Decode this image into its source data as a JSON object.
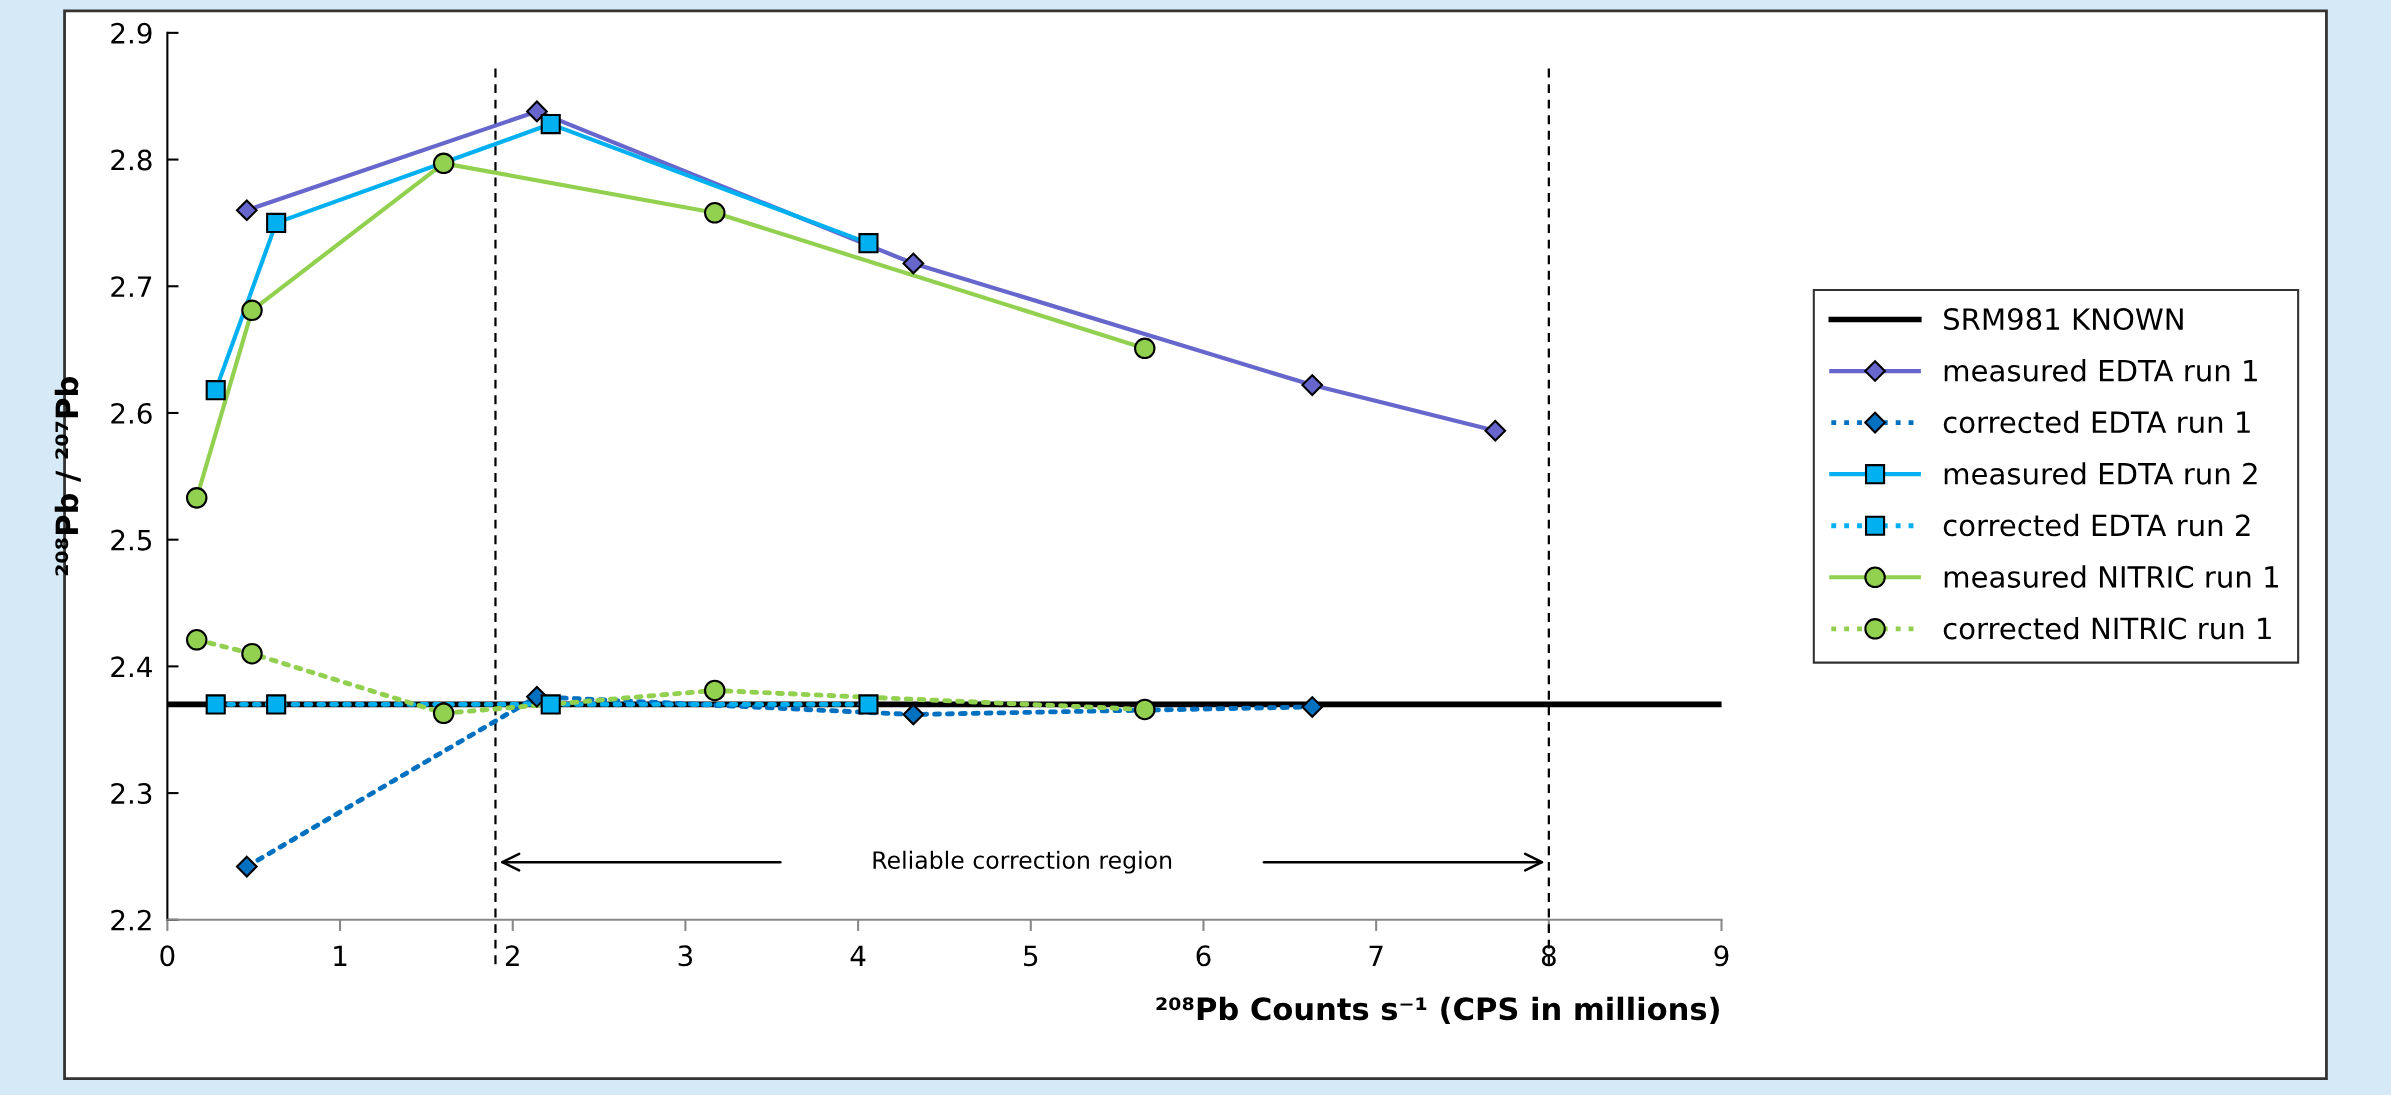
{
  "chart_data": {
    "type": "line",
    "xlabel": "²⁰⁸Pb Counts s⁻¹ (CPS in millions)",
    "ylabel": "²⁰⁸Pb / ²⁰⁷Pb",
    "xlim": [
      0,
      9
    ],
    "xticks": [
      0,
      1,
      2,
      3,
      4,
      5,
      6,
      7,
      8,
      9
    ],
    "ylim": [
      2.2,
      2.9
    ],
    "yticks": [
      2.2,
      2.3,
      2.4,
      2.5,
      2.6,
      2.7,
      2.8,
      2.9
    ],
    "grid": false,
    "legend": "right",
    "ref_lines": [
      {
        "axis": "y",
        "value": 2.37,
        "label": "SRM981 KNOWN",
        "color": "#000000",
        "line_style": "solid"
      },
      {
        "axis": "x",
        "value": 1.9,
        "color": "#000000",
        "line_style": "dashed"
      },
      {
        "axis": "x",
        "value": 8.0,
        "color": "#000000",
        "line_style": "dashed"
      }
    ],
    "annotations": [
      "Reliable correction region"
    ],
    "series": [
      {
        "name": "measured EDTA run 1",
        "color": "#6666cc",
        "marker": "diamond",
        "line_style": "solid",
        "x": [
          0.46,
          2.14,
          4.32,
          6.63,
          7.69
        ],
        "values": [
          2.76,
          2.838,
          2.718,
          2.622,
          2.586
        ]
      },
      {
        "name": "corrected EDTA run 1",
        "color": "#0070c0",
        "marker": "diamond",
        "line_style": "dotted",
        "x": [
          0.46,
          2.14,
          4.32,
          6.63
        ],
        "values": [
          2.242,
          2.376,
          2.362,
          2.368
        ]
      },
      {
        "name": "measured EDTA run 2",
        "color": "#00b0f0",
        "marker": "square",
        "line_style": "solid",
        "x": [
          0.28,
          0.63,
          2.22,
          4.06
        ],
        "values": [
          2.618,
          2.75,
          2.828,
          2.734
        ]
      },
      {
        "name": "corrected EDTA run 2",
        "color": "#00b0f0",
        "marker": "square",
        "line_style": "dotted",
        "x": [
          0.28,
          0.63,
          2.22,
          4.06
        ],
        "values": [
          2.37,
          2.37,
          2.37,
          2.37
        ]
      },
      {
        "name": "measured NITRIC run 1",
        "color": "#92d050",
        "marker": "circle",
        "line_style": "solid",
        "x": [
          0.17,
          0.49,
          1.6,
          3.17,
          5.66
        ],
        "values": [
          2.533,
          2.681,
          2.797,
          2.758,
          2.651
        ]
      },
      {
        "name": "corrected NITRIC run 1",
        "color": "#92d050",
        "marker": "circle",
        "line_style": "dotted",
        "x": [
          0.17,
          0.49,
          1.6,
          3.17,
          5.66
        ],
        "values": [
          2.421,
          2.41,
          2.363,
          2.381,
          2.366
        ]
      }
    ]
  }
}
